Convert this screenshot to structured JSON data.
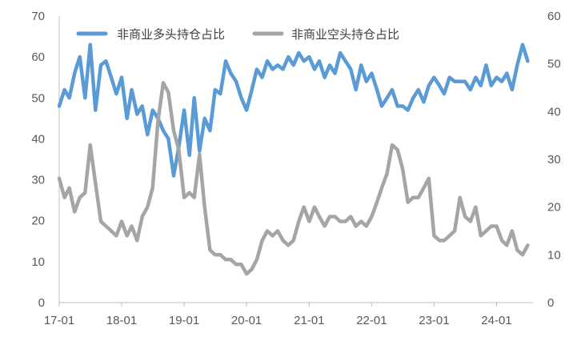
{
  "chart_data": {
    "type": "line",
    "title": "",
    "xlabel": "",
    "ylabel_left": "",
    "ylabel_right": "",
    "grid": false,
    "legend_position": "top-left",
    "x_ticks": [
      "17-01",
      "18-01",
      "19-01",
      "20-01",
      "21-01",
      "22-01",
      "23-01",
      "24-01"
    ],
    "y_left": {
      "range": [
        0,
        70
      ],
      "ticks": [
        "0",
        "10",
        "20",
        "30",
        "40",
        "50",
        "60",
        "70"
      ]
    },
    "y_right": {
      "range": [
        0,
        60
      ],
      "ticks": [
        "0",
        "10",
        "20",
        "30",
        "40",
        "50",
        "60"
      ]
    },
    "series": [
      {
        "name": "非商业多头持仓占比",
        "color": "#5b9bd5",
        "axis": "left",
        "x": [
          "2017-01",
          "2017-02",
          "2017-03",
          "2017-04",
          "2017-05",
          "2017-06",
          "2017-07",
          "2017-08",
          "2017-09",
          "2017-10",
          "2017-11",
          "2017-12",
          "2018-01",
          "2018-02",
          "2018-03",
          "2018-04",
          "2018-05",
          "2018-06",
          "2018-07",
          "2018-08",
          "2018-09",
          "2018-10",
          "2018-11",
          "2018-12",
          "2019-01",
          "2019-02",
          "2019-03",
          "2019-04",
          "2019-05",
          "2019-06",
          "2019-07",
          "2019-08",
          "2019-09",
          "2019-10",
          "2019-11",
          "2019-12",
          "2020-01",
          "2020-02",
          "2020-03",
          "2020-04",
          "2020-05",
          "2020-06",
          "2020-07",
          "2020-08",
          "2020-09",
          "2020-10",
          "2020-11",
          "2020-12",
          "2021-01",
          "2021-02",
          "2021-03",
          "2021-04",
          "2021-05",
          "2021-06",
          "2021-07",
          "2021-08",
          "2021-09",
          "2021-10",
          "2021-11",
          "2021-12",
          "2022-01",
          "2022-02",
          "2022-03",
          "2022-04",
          "2022-05",
          "2022-06",
          "2022-07",
          "2022-08",
          "2022-09",
          "2022-10",
          "2022-11",
          "2022-12",
          "2023-01",
          "2023-02",
          "2023-03",
          "2023-04",
          "2023-05",
          "2023-06",
          "2023-07",
          "2023-08",
          "2023-09",
          "2023-10",
          "2023-11",
          "2023-12",
          "2024-01",
          "2024-02",
          "2024-03",
          "2024-04",
          "2024-05",
          "2024-06",
          "2024-07"
        ],
        "values": [
          48,
          52,
          50,
          56,
          60,
          50,
          63,
          47,
          58,
          59,
          55,
          51,
          55,
          45,
          52,
          46,
          48,
          41,
          47,
          45,
          42,
          40,
          31,
          38,
          47,
          36,
          50,
          37,
          45,
          42,
          52,
          51,
          59,
          56,
          54,
          50,
          47,
          52,
          57,
          55,
          59,
          57,
          58,
          57,
          60,
          58,
          61,
          59,
          60,
          57,
          59,
          55,
          58,
          56,
          61,
          59,
          57,
          52,
          58,
          54,
          56,
          52,
          48,
          50,
          52,
          48,
          48,
          47,
          50,
          52,
          49,
          53,
          55,
          53,
          51,
          55,
          54,
          54,
          54,
          52,
          55,
          53,
          58,
          53,
          55,
          54,
          56,
          52,
          58,
          63,
          59
        ]
      },
      {
        "name": "非商业空头持仓占比",
        "color": "#a5a5a5",
        "axis": "right",
        "x": [
          "2017-01",
          "2017-02",
          "2017-03",
          "2017-04",
          "2017-05",
          "2017-06",
          "2017-07",
          "2017-08",
          "2017-09",
          "2017-10",
          "2017-11",
          "2017-12",
          "2018-01",
          "2018-02",
          "2018-03",
          "2018-04",
          "2018-05",
          "2018-06",
          "2018-07",
          "2018-08",
          "2018-09",
          "2018-10",
          "2018-11",
          "2018-12",
          "2019-01",
          "2019-02",
          "2019-03",
          "2019-04",
          "2019-05",
          "2019-06",
          "2019-07",
          "2019-08",
          "2019-09",
          "2019-10",
          "2019-11",
          "2019-12",
          "2020-01",
          "2020-02",
          "2020-03",
          "2020-04",
          "2020-05",
          "2020-06",
          "2020-07",
          "2020-08",
          "2020-09",
          "2020-10",
          "2020-11",
          "2020-12",
          "2021-01",
          "2021-02",
          "2021-03",
          "2021-04",
          "2021-05",
          "2021-06",
          "2021-07",
          "2021-08",
          "2021-09",
          "2021-10",
          "2021-11",
          "2021-12",
          "2022-01",
          "2022-02",
          "2022-03",
          "2022-04",
          "2022-05",
          "2022-06",
          "2022-07",
          "2022-08",
          "2022-09",
          "2022-10",
          "2022-11",
          "2022-12",
          "2023-01",
          "2023-02",
          "2023-03",
          "2023-04",
          "2023-05",
          "2023-06",
          "2023-07",
          "2023-08",
          "2023-09",
          "2023-10",
          "2023-11",
          "2023-12",
          "2024-01",
          "2024-02",
          "2024-03",
          "2024-04",
          "2024-05",
          "2024-06",
          "2024-07"
        ],
        "values": [
          26,
          22,
          24,
          19,
          22,
          23,
          33,
          25,
          17,
          16,
          15,
          14,
          17,
          14,
          16,
          13,
          18,
          20,
          24,
          38,
          46,
          44,
          36,
          32,
          22,
          23,
          22,
          31,
          20,
          11,
          10,
          10,
          9,
          9,
          8,
          8,
          6,
          7,
          9,
          13,
          15,
          14,
          15,
          13,
          12,
          13,
          17,
          20,
          17,
          20,
          18,
          16,
          18,
          18,
          17,
          17,
          18,
          16,
          17,
          16,
          18,
          21,
          24,
          27,
          33,
          32,
          28,
          21,
          22,
          22,
          24,
          26,
          14,
          13,
          13,
          14,
          15,
          22,
          18,
          17,
          20,
          14,
          15,
          16,
          16,
          13,
          12,
          15,
          11,
          10,
          12
        ]
      }
    ]
  }
}
